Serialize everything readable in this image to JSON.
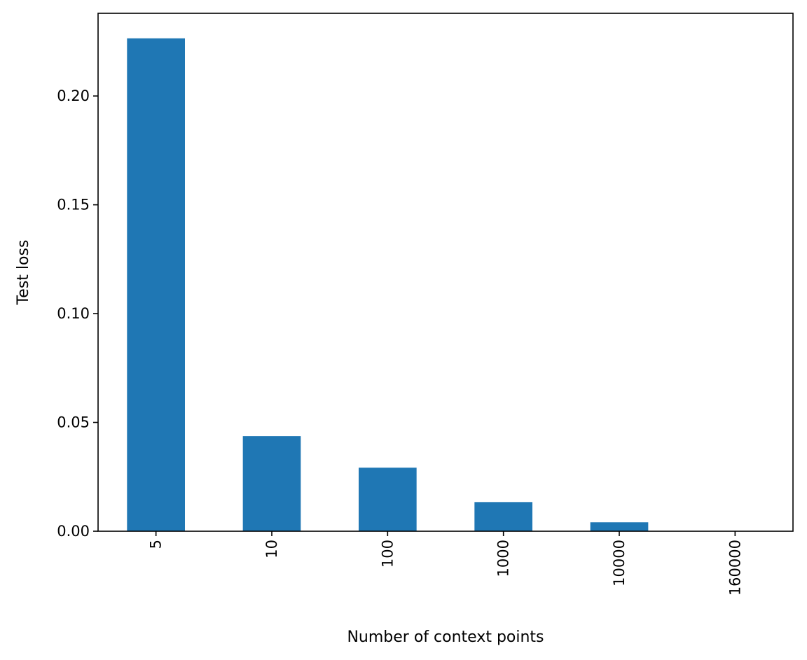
{
  "chart_data": {
    "type": "bar",
    "title": "",
    "xlabel": "Number of context points",
    "ylabel": "Test loss",
    "categories": [
      "5",
      "10",
      "100",
      "1000",
      "10000",
      "160000"
    ],
    "values": [
      0.2265,
      0.0437,
      0.0292,
      0.0134,
      0.0041,
      0.0001
    ],
    "ylim": [
      0,
      0.238
    ],
    "yticks": [
      0.0,
      0.05,
      0.1,
      0.15,
      0.2
    ],
    "ytick_labels": [
      "0.00",
      "0.05",
      "0.10",
      "0.15",
      "0.20"
    ],
    "x_tick_rotation": 90,
    "grid": false,
    "legend": "none",
    "bar_color": "#1f77b4"
  }
}
